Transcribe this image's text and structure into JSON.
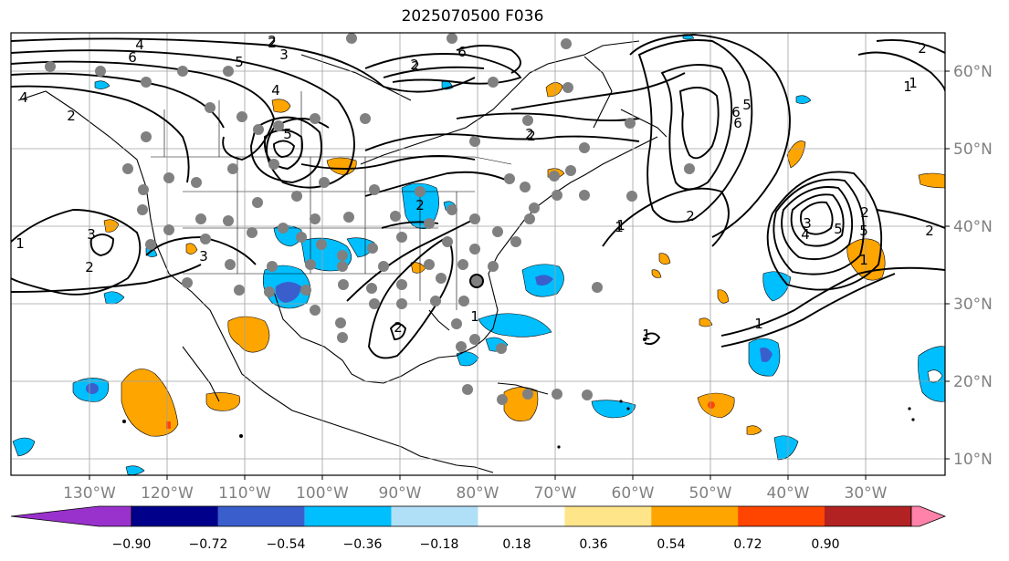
{
  "title": "2025070500 F036",
  "map": {
    "lon_ticks": [
      "130°W",
      "120°W",
      "110°W",
      "100°W",
      "90°W",
      "80°W",
      "70°W",
      "60°W",
      "50°W",
      "40°W",
      "30°W"
    ],
    "lat_ticks": [
      "60°N",
      "50°N",
      "40°N",
      "30°N",
      "20°N",
      "10°N"
    ]
  },
  "colorbar": {
    "labels": [
      "−0.90",
      "−0.72",
      "−0.54",
      "−0.36",
      "−0.18",
      "0.18",
      "0.36",
      "0.54",
      "0.72",
      "0.90"
    ],
    "colors": [
      "#9932cc",
      "#00008b",
      "#3a5fcd",
      "#00bfff",
      "#b0e0f8",
      "#ffffff",
      "#ffe58a",
      "#ffa500",
      "#ff4500",
      "#b22222",
      "#ff82ab"
    ]
  },
  "contour_labels": [
    "4",
    "2",
    "6",
    "5",
    "3",
    "2",
    "4",
    "6",
    "5",
    "2",
    "4",
    "2",
    "1",
    "3",
    "2",
    "3",
    "2",
    "1",
    "1",
    "2",
    "1",
    "5",
    "6",
    "1",
    "6",
    "5",
    "2",
    "2",
    "1",
    "1",
    "2",
    "1",
    "3",
    "4",
    "5",
    "2",
    "2",
    "2",
    "1",
    "2"
  ]
}
